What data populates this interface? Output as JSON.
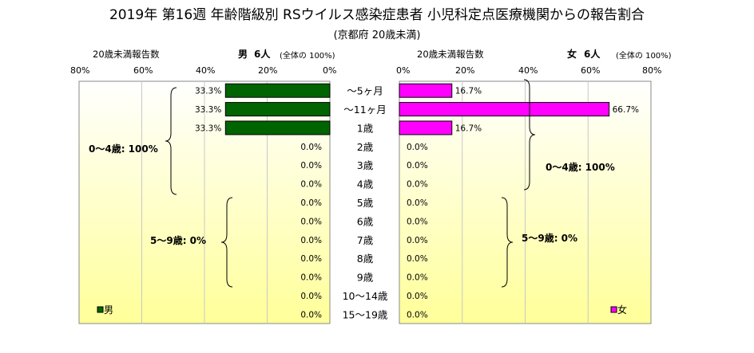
{
  "chart_data": {
    "type": "bar",
    "title": "2019年 第16週 年齢階級別 RSウイルス感染症患者 小児科定点医療機関からの報告割合",
    "subtitle": "(京都府 20歳未満)",
    "categories": [
      "～5ヶ月",
      "～11ヶ月",
      "1歳",
      "2歳",
      "3歳",
      "4歳",
      "5歳",
      "6歳",
      "7歳",
      "8歳",
      "9歳",
      "10～14歳",
      "15～19歳"
    ],
    "series": [
      {
        "name": "男",
        "values": [
          33.3,
          33.3,
          33.3,
          0,
          0,
          0,
          0,
          0,
          0,
          0,
          0,
          0,
          0
        ],
        "labels": [
          "33.3%",
          "33.3%",
          "33.3%",
          "0.0%",
          "0.0%",
          "0.0%",
          "0.0%",
          "0.0%",
          "0.0%",
          "0.0%",
          "0.0%",
          "0.0%",
          "0.0%"
        ],
        "color": "#006400"
      },
      {
        "name": "女",
        "values": [
          16.7,
          66.7,
          16.7,
          0,
          0,
          0,
          0,
          0,
          0,
          0,
          0,
          0,
          0
        ],
        "labels": [
          "16.7%",
          "66.7%",
          "16.7%",
          "0.0%",
          "0.0%",
          "0.0%",
          "0.0%",
          "0.0%",
          "0.0%",
          "0.0%",
          "0.0%",
          "0.0%",
          "0.0%"
        ],
        "color": "#ff00ff"
      }
    ],
    "axis_left": {
      "label": "20歳未満報告数",
      "ticks": [
        "80%",
        "60%",
        "40%",
        "20%",
        "0%"
      ],
      "xlim": [
        80,
        0
      ]
    },
    "axis_right": {
      "label": "20歳未満報告数",
      "ticks": [
        "0%",
        "20%",
        "40%",
        "60%",
        "80%"
      ],
      "xlim": [
        0,
        80
      ]
    },
    "male_header": {
      "label": "男",
      "count": "6人",
      "note": "(全体の 100%)"
    },
    "female_header": {
      "label": "女",
      "count": "6人",
      "note": "(全体の 100%)"
    },
    "group_annotations": {
      "male": [
        "0～4歳: 100%",
        "5～9歳: 0%"
      ],
      "female": [
        "0～4歳: 100%",
        "5～9歳: 0%"
      ]
    },
    "legend": {
      "male": "男",
      "female": "女"
    },
    "grid": true,
    "colors": {
      "male_bar": "#006400",
      "female_bar": "#ff00ff",
      "plot_bg_top": "#ffffff",
      "plot_bg_bottom": "#ffff99"
    }
  }
}
